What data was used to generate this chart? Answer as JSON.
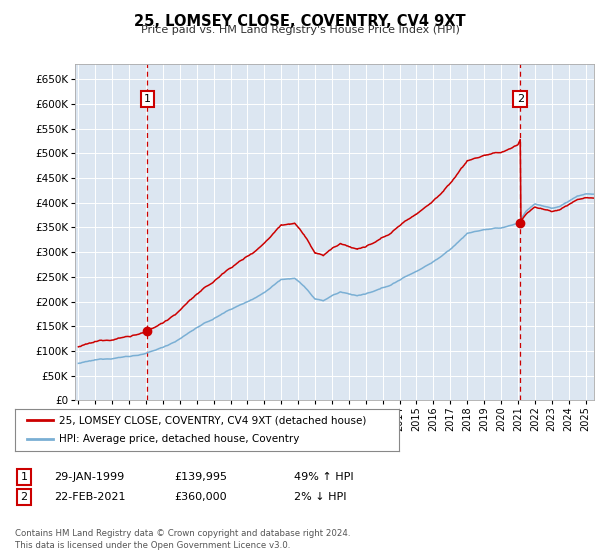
{
  "title": "25, LOMSEY CLOSE, COVENTRY, CV4 9XT",
  "subtitle": "Price paid vs. HM Land Registry's House Price Index (HPI)",
  "ytick_values": [
    0,
    50000,
    100000,
    150000,
    200000,
    250000,
    300000,
    350000,
    400000,
    450000,
    500000,
    550000,
    600000,
    650000
  ],
  "ylim": [
    0,
    680000
  ],
  "xlim": [
    1994.8,
    2025.5
  ],
  "sale1_year": 1999.08,
  "sale1_price": 139995,
  "sale2_year": 2021.14,
  "sale2_price": 360000,
  "legend_line1": "25, LOMSEY CLOSE, COVENTRY, CV4 9XT (detached house)",
  "legend_line2": "HPI: Average price, detached house, Coventry",
  "table_row1": [
    "1",
    "29-JAN-1999",
    "£139,995",
    "49% ↑ HPI"
  ],
  "table_row2": [
    "2",
    "22-FEB-2021",
    "£360,000",
    "2% ↓ HPI"
  ],
  "footer": "Contains HM Land Registry data © Crown copyright and database right 2024.\nThis data is licensed under the Open Government Licence v3.0.",
  "bg_color": "#dce6f1",
  "grid_color": "#ffffff",
  "hpi_color": "#7aafd4",
  "price_color": "#cc0000",
  "vline_color": "#cc0000",
  "box_color": "#cc0000",
  "fig_bg": "#ffffff"
}
